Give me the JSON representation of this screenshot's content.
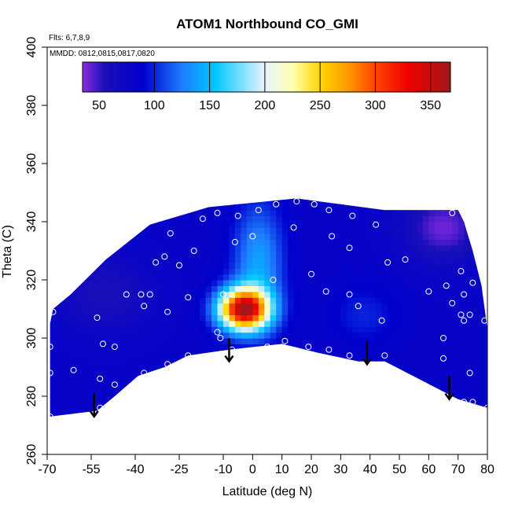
{
  "chart_data": {
    "type": "heatmap",
    "title": "ATOM1 Northbound CO_GMI",
    "annotations": {
      "flights": "Flts: 6,7,8,9",
      "dates": "MMDD: 0812,0815,0817,0820"
    },
    "xlabel": "Latitude (deg N)",
    "ylabel": "Theta (C)",
    "xlim": [
      -70,
      80
    ],
    "ylim": [
      260,
      400
    ],
    "x_ticks": [
      -70,
      -55,
      -40,
      -25,
      -10,
      0,
      10,
      20,
      30,
      40,
      50,
      60,
      70,
      80
    ],
    "x_tick_labels": [
      "-70",
      "-55",
      "-40",
      "-25",
      "-10",
      "0",
      "10",
      "20",
      "30",
      "40",
      "50",
      "60",
      "70",
      "80"
    ],
    "y_ticks": [
      260,
      280,
      300,
      320,
      340,
      360,
      380,
      400
    ],
    "y_tick_labels": [
      "260",
      "280",
      "300",
      "320",
      "340",
      "360",
      "380",
      "400"
    ],
    "colorbar": {
      "range": [
        35,
        368
      ],
      "ticks": [
        50,
        100,
        150,
        200,
        250,
        300,
        350
      ],
      "tick_labels": [
        "50",
        "100",
        "150",
        "200",
        "250",
        "300",
        "350"
      ],
      "divisions": [
        100,
        150,
        200,
        250,
        300,
        350
      ],
      "color_stops": [
        {
          "value": 35,
          "color": "#8a2be2"
        },
        {
          "value": 55,
          "color": "#1a0fb8"
        },
        {
          "value": 90,
          "color": "#0000cd"
        },
        {
          "value": 125,
          "color": "#1e7cff"
        },
        {
          "value": 155,
          "color": "#00c8ff"
        },
        {
          "value": 200,
          "color": "#e8f4ff"
        },
        {
          "value": 225,
          "color": "#ffffb0"
        },
        {
          "value": 250,
          "color": "#ffd700"
        },
        {
          "value": 275,
          "color": "#ff9a00"
        },
        {
          "value": 300,
          "color": "#ff4400"
        },
        {
          "value": 330,
          "color": "#ee0000"
        },
        {
          "value": 368,
          "color": "#a01818"
        }
      ]
    },
    "boundary_bottom": [
      {
        "lat": -69,
        "theta": 273
      },
      {
        "lat": -53,
        "theta": 275
      },
      {
        "lat": -47,
        "theta": 280
      },
      {
        "lat": -39,
        "theta": 287
      },
      {
        "lat": -30,
        "theta": 290
      },
      {
        "lat": -22,
        "theta": 294
      },
      {
        "lat": -8,
        "theta": 296
      },
      {
        "lat": 10,
        "theta": 298
      },
      {
        "lat": 22,
        "theta": 295
      },
      {
        "lat": 36,
        "theta": 292
      },
      {
        "lat": 45,
        "theta": 292
      },
      {
        "lat": 70,
        "theta": 279
      },
      {
        "lat": 80,
        "theta": 276
      }
    ],
    "boundary_top": [
      {
        "lat": 80,
        "theta": 303
      },
      {
        "lat": 78,
        "theta": 318
      },
      {
        "lat": 75,
        "theta": 330
      },
      {
        "lat": 72,
        "theta": 340
      },
      {
        "lat": 70,
        "theta": 344
      },
      {
        "lat": 45,
        "theta": 344
      },
      {
        "lat": 15,
        "theta": 348
      },
      {
        "lat": -15,
        "theta": 345
      },
      {
        "lat": -35,
        "theta": 339
      },
      {
        "lat": -50,
        "theta": 327
      },
      {
        "lat": -62,
        "theta": 315
      },
      {
        "lat": -68,
        "theta": 310
      },
      {
        "lat": -69,
        "theta": 305
      }
    ],
    "field": {
      "background_value": 80,
      "features": [
        {
          "lat": -3,
          "theta": 310,
          "sigma_lat": 6,
          "sigma_theta": 5,
          "amplitude": 270
        },
        {
          "lat": 2,
          "theta": 325,
          "sigma_lat": 6,
          "sigma_theta": 15,
          "amplitude": 60
        },
        {
          "lat": 65,
          "theta": 338,
          "sigma_lat": 9,
          "sigma_theta": 8,
          "amplitude": -40
        },
        {
          "lat": -50,
          "theta": 315,
          "sigma_lat": 10,
          "sigma_theta": 8,
          "amplitude": -25
        },
        {
          "lat": 38,
          "theta": 308,
          "sigma_lat": 8,
          "sigma_theta": 7,
          "amplitude": 20
        }
      ]
    },
    "sample_points": [
      {
        "lat": -68,
        "theta": 309
      },
      {
        "lat": -69,
        "theta": 297
      },
      {
        "lat": -69,
        "theta": 288
      },
      {
        "lat": -69,
        "theta": 273
      },
      {
        "lat": -61,
        "theta": 289
      },
      {
        "lat": -53,
        "theta": 307
      },
      {
        "lat": -51,
        "theta": 298
      },
      {
        "lat": -52,
        "theta": 286
      },
      {
        "lat": -47,
        "theta": 284
      },
      {
        "lat": -52,
        "theta": 276
      },
      {
        "lat": -47,
        "theta": 276
      },
      {
        "lat": -47,
        "theta": 297
      },
      {
        "lat": -43,
        "theta": 315
      },
      {
        "lat": -38,
        "theta": 315
      },
      {
        "lat": -37,
        "theta": 311
      },
      {
        "lat": -35,
        "theta": 315
      },
      {
        "lat": -37,
        "theta": 288
      },
      {
        "lat": -29,
        "theta": 309
      },
      {
        "lat": -29,
        "theta": 291
      },
      {
        "lat": -22,
        "theta": 314
      },
      {
        "lat": -22,
        "theta": 294
      },
      {
        "lat": -33,
        "theta": 326
      },
      {
        "lat": -30,
        "theta": 328
      },
      {
        "lat": -28,
        "theta": 336
      },
      {
        "lat": -25,
        "theta": 325
      },
      {
        "lat": -20,
        "theta": 330
      },
      {
        "lat": -17,
        "theta": 341
      },
      {
        "lat": -12,
        "theta": 343
      },
      {
        "lat": -6,
        "theta": 333
      },
      {
        "lat": -5,
        "theta": 342
      },
      {
        "lat": 0,
        "theta": 335
      },
      {
        "lat": 2,
        "theta": 344
      },
      {
        "lat": 8,
        "theta": 346
      },
      {
        "lat": 14,
        "theta": 338
      },
      {
        "lat": 15,
        "theta": 347
      },
      {
        "lat": 21,
        "theta": 346
      },
      {
        "lat": 26,
        "theta": 344
      },
      {
        "lat": 34,
        "theta": 342
      },
      {
        "lat": 27,
        "theta": 335
      },
      {
        "lat": 33,
        "theta": 331
      },
      {
        "lat": 42,
        "theta": 339
      },
      {
        "lat": 46,
        "theta": 326
      },
      {
        "lat": 52,
        "theta": 327
      },
      {
        "lat": 20,
        "theta": 322
      },
      {
        "lat": 7,
        "theta": 320
      },
      {
        "lat": -10,
        "theta": 315
      },
      {
        "lat": -12,
        "theta": 302
      },
      {
        "lat": -11,
        "theta": 300
      },
      {
        "lat": -7,
        "theta": 296
      },
      {
        "lat": 5,
        "theta": 297
      },
      {
        "lat": 11,
        "theta": 299
      },
      {
        "lat": 19,
        "theta": 297
      },
      {
        "lat": 25,
        "theta": 316
      },
      {
        "lat": 26,
        "theta": 296
      },
      {
        "lat": 33,
        "theta": 315
      },
      {
        "lat": 36,
        "theta": 311
      },
      {
        "lat": 33,
        "theta": 294
      },
      {
        "lat": 44,
        "theta": 306
      },
      {
        "lat": 45,
        "theta": 294
      },
      {
        "lat": 60,
        "theta": 316
      },
      {
        "lat": 66,
        "theta": 318
      },
      {
        "lat": 68,
        "theta": 343
      },
      {
        "lat": 71,
        "theta": 323
      },
      {
        "lat": 72,
        "theta": 315
      },
      {
        "lat": 75,
        "theta": 319
      },
      {
        "lat": 68,
        "theta": 312
      },
      {
        "lat": 71,
        "theta": 308
      },
      {
        "lat": 72,
        "theta": 306
      },
      {
        "lat": 74,
        "theta": 308
      },
      {
        "lat": 65,
        "theta": 300
      },
      {
        "lat": 65,
        "theta": 293
      },
      {
        "lat": 74,
        "theta": 288
      },
      {
        "lat": 72,
        "theta": 278
      },
      {
        "lat": 75,
        "theta": 278
      },
      {
        "lat": 80,
        "theta": 276
      },
      {
        "lat": 79,
        "theta": 306
      }
    ],
    "arrows": [
      {
        "lat": -54,
        "theta_top": 281,
        "theta_tip": 273
      },
      {
        "lat": -8,
        "theta_top": 300,
        "theta_tip": 292
      },
      {
        "lat": 39,
        "theta_top": 299,
        "theta_tip": 291
      },
      {
        "lat": 67,
        "theta_top": 287,
        "theta_tip": 279
      }
    ]
  }
}
